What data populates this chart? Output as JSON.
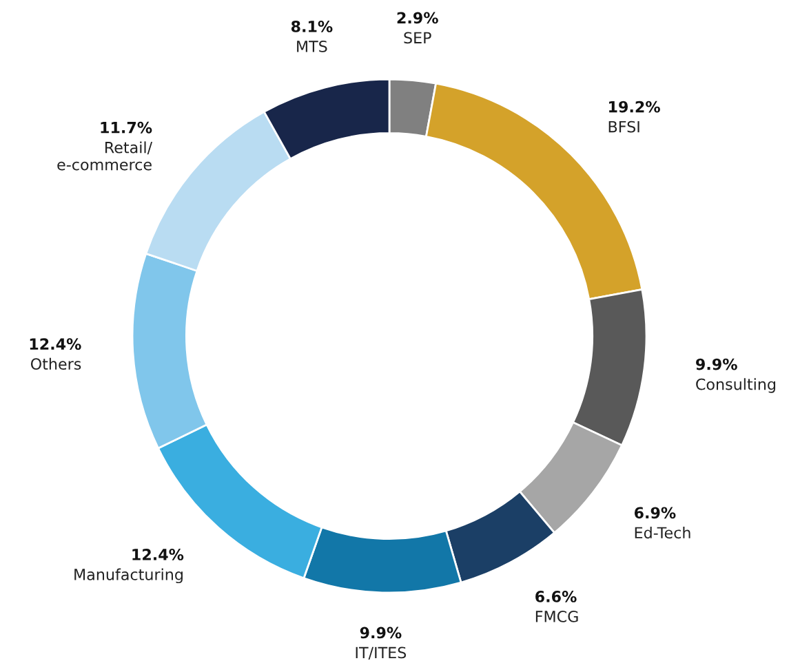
{
  "chart_data": {
    "type": "donut",
    "categories": [
      "SEP",
      "BFSI",
      "Consulting",
      "Ed-Tech",
      "FMCG",
      "IT/ITES",
      "Manufacturing",
      "Others",
      "Retail/\ne-commerce",
      "MTS"
    ],
    "values": [
      2.9,
      19.2,
      9.9,
      6.9,
      6.6,
      9.9,
      12.4,
      12.4,
      11.7,
      8.1
    ],
    "value_labels": [
      "2.9%",
      "19.2%",
      "9.9%",
      "6.9%",
      "6.6%",
      "9.9%",
      "12.4%",
      "12.4%",
      "11.7%",
      "8.1%"
    ],
    "colors": [
      "#808080",
      "#d4a22a",
      "#595959",
      "#a6a6a6",
      "#1b3f66",
      "#1277a8",
      "#3aaee0",
      "#80c6eb",
      "#b9dcf2",
      "#18264a"
    ],
    "legend": false
  }
}
